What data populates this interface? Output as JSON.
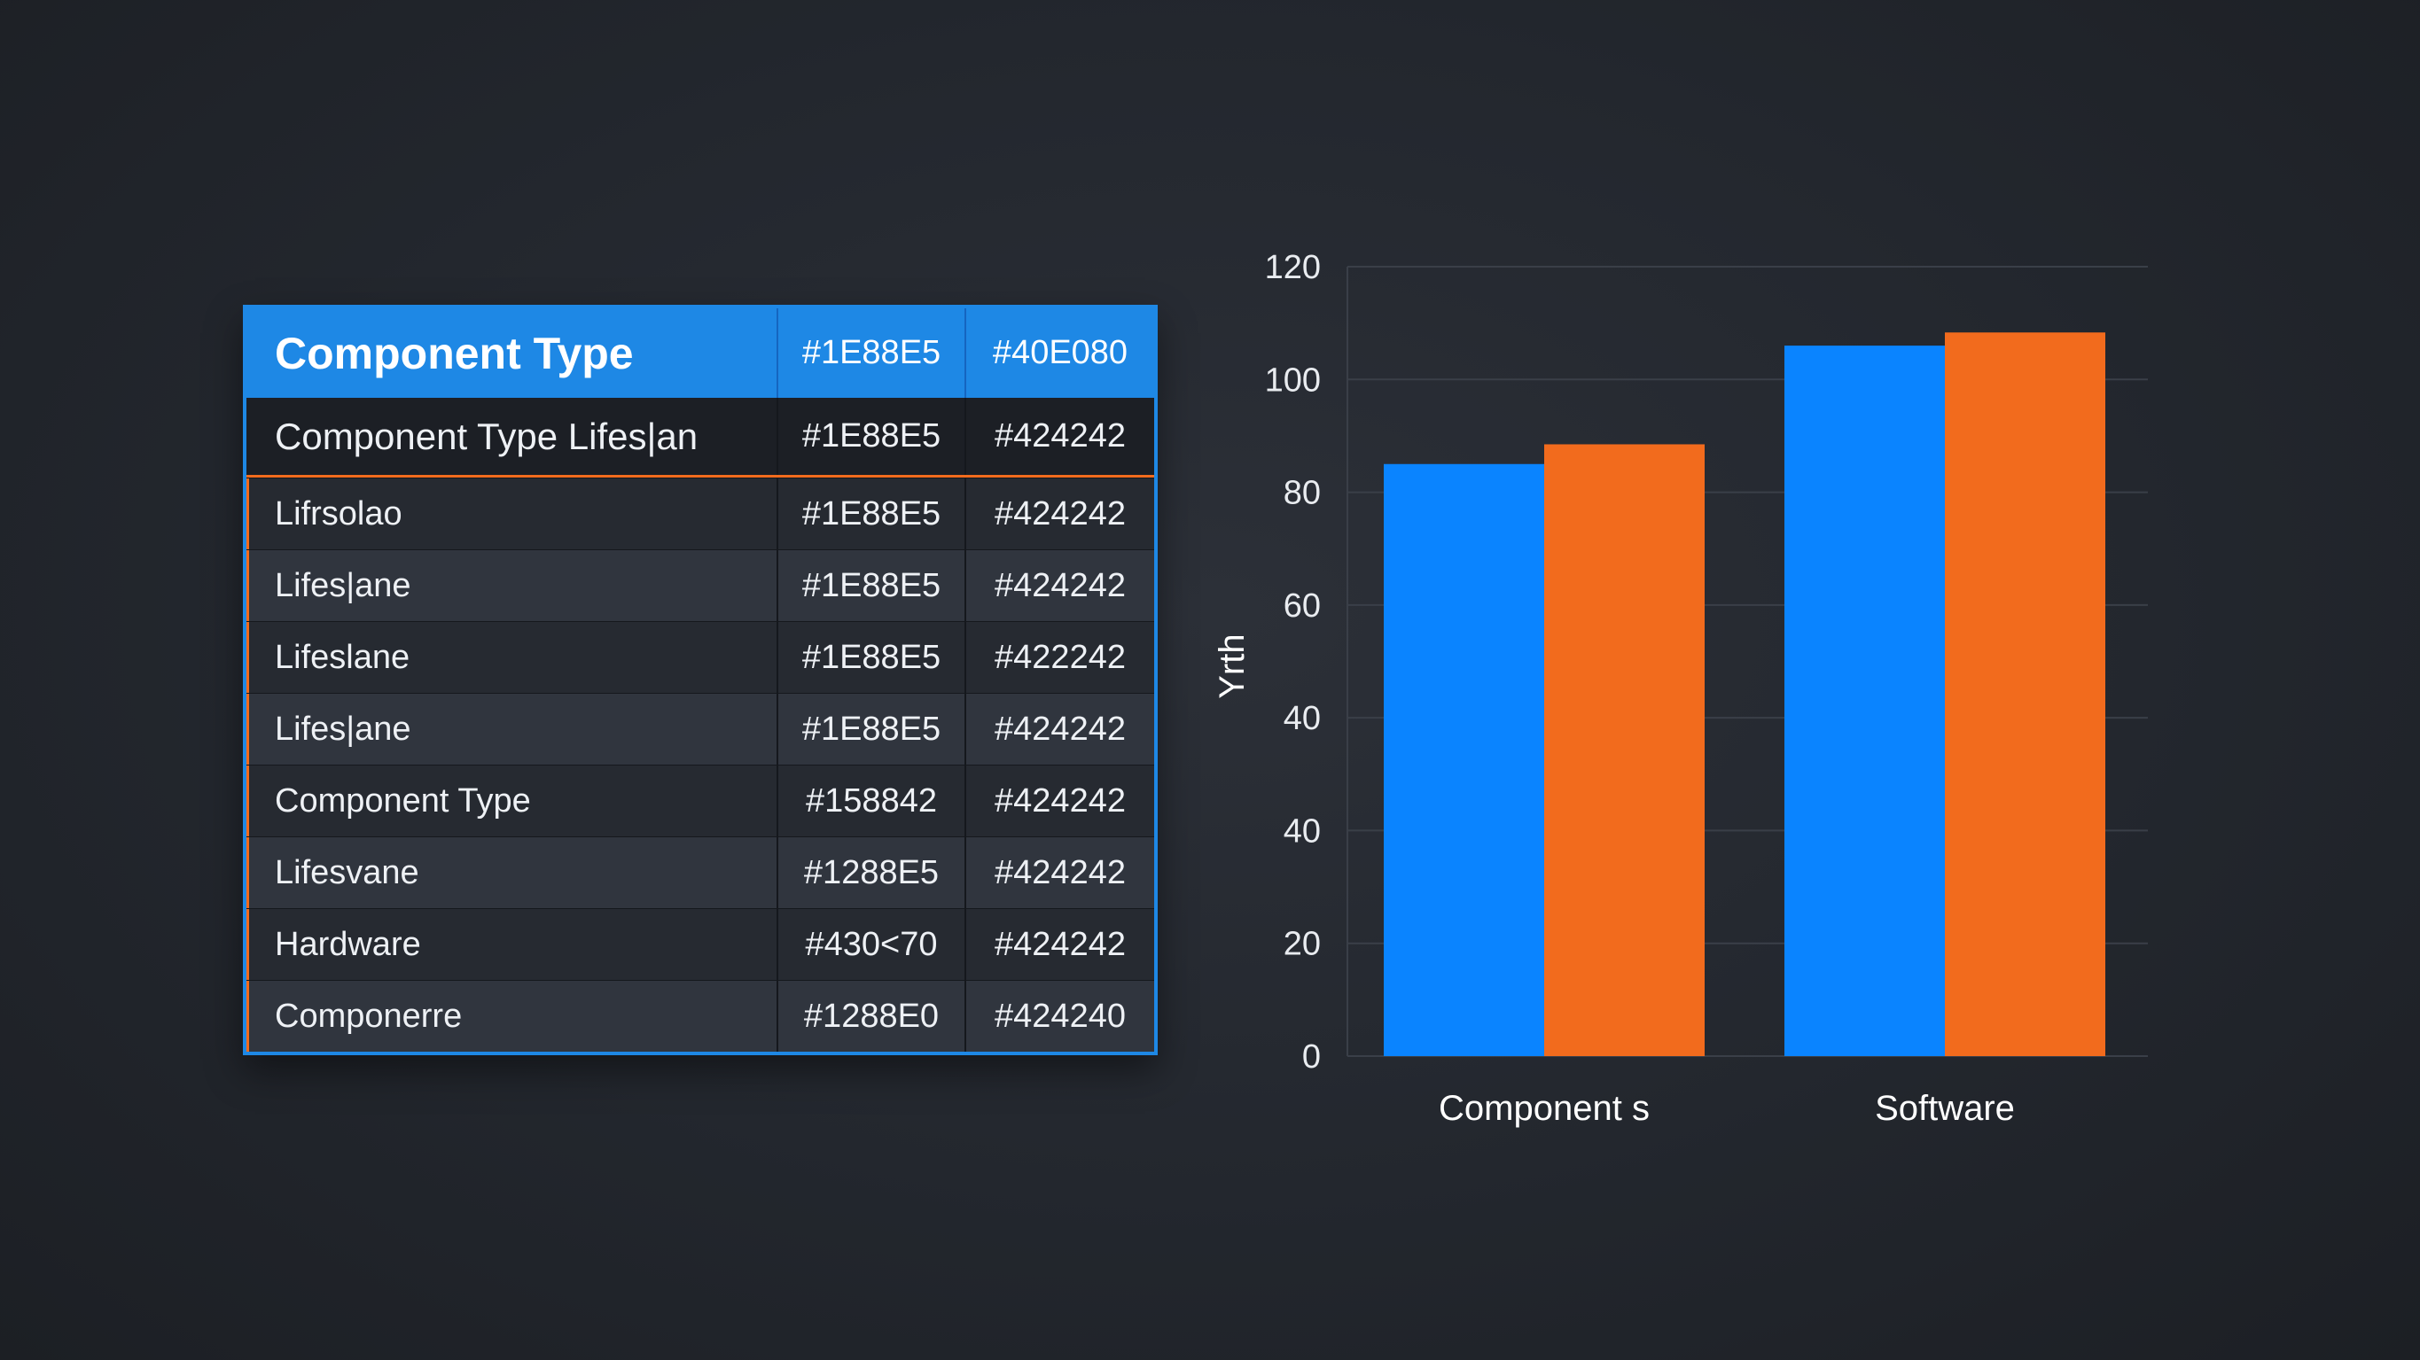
{
  "table": {
    "header": [
      "Component Type",
      "#1E88E5",
      "#40E080"
    ],
    "subheader": [
      "Component Type   Lifes|an",
      "#1E88E5",
      "#424242"
    ],
    "rows": [
      [
        "Lifrsolao",
        "#1E88E5",
        "#424242"
      ],
      [
        "Lifes|ane",
        "#1E88E5",
        "#424242"
      ],
      [
        "Lifeslane",
        "#1E88E5",
        "#422242"
      ],
      [
        "Lifes|ane",
        "#1E88E5",
        "#424242"
      ],
      [
        "Component Type",
        "#158842",
        "#424242"
      ],
      [
        "Lifesvane",
        "#1288E5",
        "#424242"
      ],
      [
        "Hardware",
        "#430<70",
        "#424242"
      ],
      [
        "Componerre",
        "#1288E0",
        "#424240"
      ]
    ]
  },
  "colors": {
    "accent_blue": "#1E88E5",
    "accent_orange": "#F26B1D",
    "background": "#23272E"
  },
  "chart_data": {
    "type": "bar",
    "categories": [
      "Component s",
      "Software"
    ],
    "series": [
      {
        "values": [
          90,
          108
        ],
        "color": "#0a84ff"
      },
      {
        "values": [
          93,
          110
        ],
        "color": "#f26b1d"
      }
    ],
    "xlabel": "",
    "ylabel": "Yrth",
    "yticks": [
      "0",
      "20",
      "40",
      "40",
      "60",
      "80",
      "100",
      "120"
    ],
    "ylim": [
      0,
      120
    ],
    "grid": true
  }
}
